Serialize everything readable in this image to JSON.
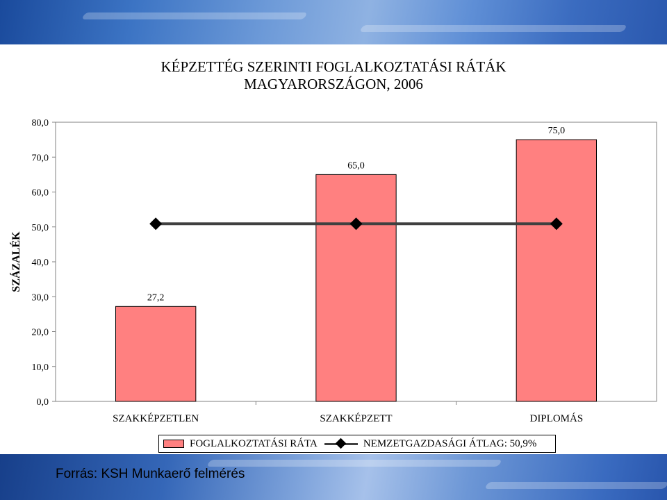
{
  "colors": {
    "bar_fill": "#ff8080",
    "line_color": "#404040",
    "marker_color": "#000000"
  },
  "footer": {
    "source": "Forrás: KSH Munkaerő felmérés"
  },
  "chart_data": {
    "type": "bar",
    "title": [
      "KÉPZETTÉG SZERINTI FOGLALKOZTATÁSI RÁTÁK",
      "MAGYARORSZÁGON, 2006"
    ],
    "ylabel": "SZÁZALÉK",
    "xlabel": "",
    "ylim": [
      0,
      80
    ],
    "yticks": [
      "0,0",
      "10,0",
      "20,0",
      "30,0",
      "40,0",
      "50,0",
      "60,0",
      "70,0",
      "80,0"
    ],
    "ytick_values": [
      0,
      10,
      20,
      30,
      40,
      50,
      60,
      70,
      80
    ],
    "categories": [
      "SZAKKÉPZETLEN",
      "SZAKKÉPZETT",
      "DIPLOMÁS"
    ],
    "series": [
      {
        "name": "FOGLALKOZTATÁSI RÁTA",
        "type": "bar",
        "values": [
          27.2,
          65.0,
          75.0
        ],
        "labels": [
          "27,2",
          "65,0",
          "75,0"
        ]
      },
      {
        "name": "NEMZETGAZDASÁGI ÁTLAG: 50,9%",
        "type": "line",
        "values": [
          50.9,
          50.9,
          50.9
        ]
      }
    ],
    "grid": false,
    "legend_position": "bottom"
  }
}
